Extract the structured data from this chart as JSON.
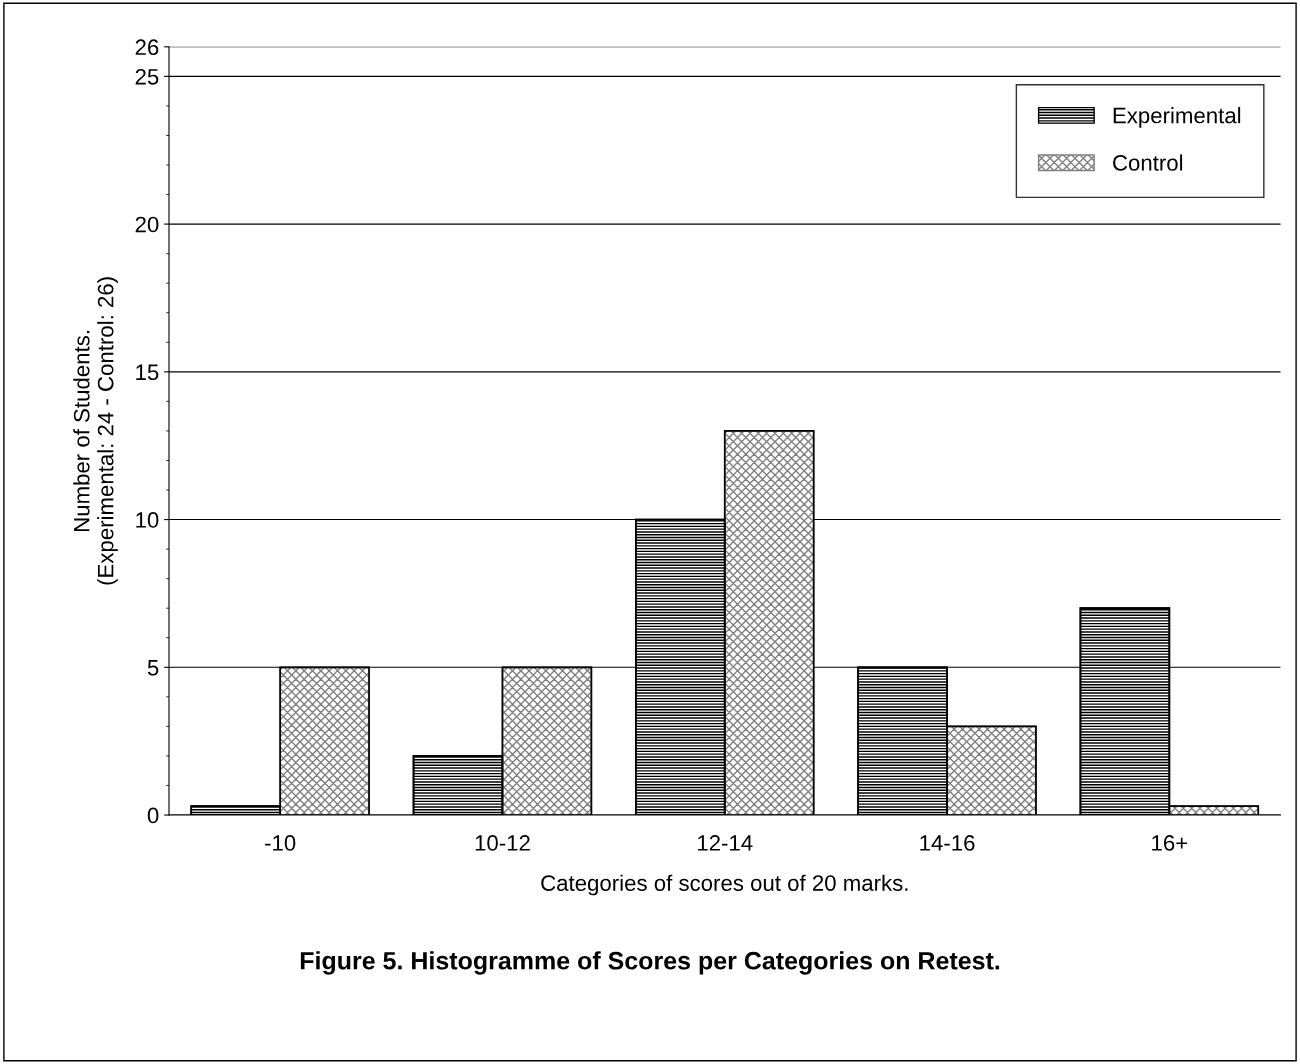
{
  "chart_data": {
    "type": "bar",
    "title": "Figure 5. Histogramme of Scores per Categories on Retest.",
    "xlabel": "Categories of scores out of 20 marks.",
    "ylabel": "Number of Students.\n(Experimental: 24 - Control: 26)",
    "categories": [
      "-10",
      "10-12",
      "12-14",
      "14-16",
      "16+"
    ],
    "series": [
      {
        "name": "Experimental",
        "color": "#000000",
        "values": [
          0.3,
          2,
          10,
          5,
          7
        ]
      },
      {
        "name": "Control",
        "color": "#808080",
        "values": [
          5,
          5,
          13,
          3,
          0.3
        ]
      }
    ],
    "ylim": [
      0,
      26
    ],
    "yticks": [
      0,
      5,
      10,
      15,
      20,
      25,
      26
    ],
    "grid": "y",
    "legend": "top right"
  }
}
